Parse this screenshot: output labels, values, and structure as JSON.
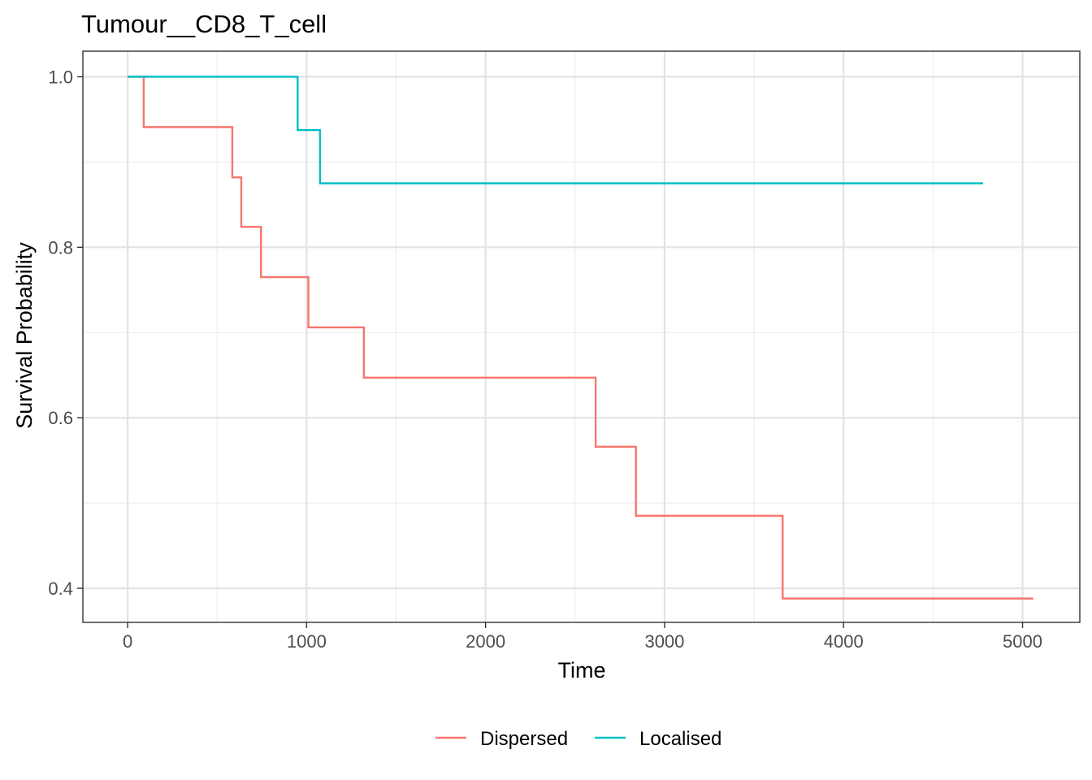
{
  "chart_data": {
    "type": "line",
    "subtype": "step",
    "title": "Tumour__CD8_T_cell",
    "xlabel": "Time",
    "ylabel": "Survival Probability",
    "xlim": [
      -250,
      5320
    ],
    "ylim": [
      0.36,
      1.03
    ],
    "x_ticks": [
      0,
      1000,
      2000,
      3000,
      4000,
      5000
    ],
    "x_tick_labels": [
      "0",
      "1000",
      "2000",
      "3000",
      "4000",
      "5000"
    ],
    "y_ticks": [
      0.4,
      0.6,
      0.8,
      1.0
    ],
    "y_tick_labels": [
      "0.4",
      "0.6",
      "0.8",
      "1.0"
    ],
    "x_minor_ticks": [
      500,
      1500,
      2500,
      3500,
      4500
    ],
    "y_minor_ticks": [
      0.5,
      0.7,
      0.9
    ],
    "grid": true,
    "legend_position": "bottom",
    "series": [
      {
        "name": "Dispersed",
        "color": "#F8766D",
        "x": [
          0,
          90,
          585,
          635,
          745,
          1010,
          1320,
          2615,
          2840,
          3660,
          5060
        ],
        "y": [
          1.0,
          0.941,
          0.882,
          0.824,
          0.765,
          0.706,
          0.647,
          0.566,
          0.485,
          0.388,
          0.388
        ]
      },
      {
        "name": "Localised",
        "color": "#00BFC4",
        "x": [
          0,
          950,
          1075,
          4780
        ],
        "y": [
          1.0,
          0.9375,
          0.875,
          0.875
        ]
      }
    ]
  }
}
